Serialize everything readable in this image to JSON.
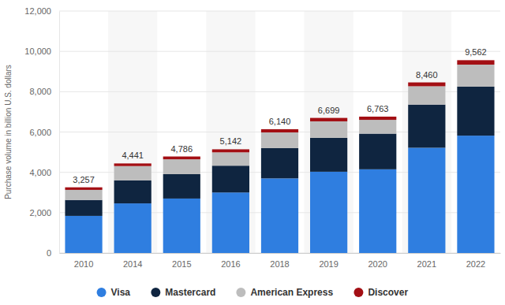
{
  "chart_data": {
    "type": "bar",
    "stacked": true,
    "grid": true,
    "legend": "bottom",
    "y_label": "Purchase volume in billion U.S. dollars",
    "categories": [
      "2010",
      "2014",
      "2015",
      "2016",
      "2018",
      "2019",
      "2020",
      "2021",
      "2022"
    ],
    "series": [
      {
        "name": "Visa",
        "color": "#2f7ee0",
        "values": [
          1840,
          2460,
          2700,
          3000,
          3700,
          4030,
          4150,
          5220,
          5820
        ]
      },
      {
        "name": "Mastercard",
        "color": "#0f2540",
        "values": [
          790,
          1140,
          1210,
          1330,
          1500,
          1680,
          1770,
          2140,
          2430
        ]
      },
      {
        "name": "American Express",
        "color": "#bdbdbd",
        "values": [
          500,
          710,
          736,
          662,
          780,
          819,
          683,
          910,
          1092
        ]
      },
      {
        "name": "Discover",
        "color": "#a30f14",
        "values": [
          127,
          131,
          140,
          150,
          160,
          170,
          160,
          190,
          220
        ]
      }
    ],
    "totals": [
      3257,
      4441,
      4786,
      5142,
      6140,
      6699,
      6763,
      8460,
      9562
    ],
    "total_labels": [
      "3,257",
      "4,441",
      "4,786",
      "5,142",
      "6,140",
      "6,699",
      "6,763",
      "8,460",
      "9,562"
    ],
    "ylim": [
      0,
      12000
    ],
    "yticks": [
      0,
      {
        "value": 2000,
        "label": "2,000"
      },
      {
        "value": 4000,
        "label": "4,000"
      },
      {
        "value": 6000,
        "label": "6,000"
      },
      {
        "value": 8000,
        "label": "8,000"
      },
      {
        "value": 10000,
        "label": "10,000"
      },
      {
        "value": 12000,
        "label": "12,000"
      }
    ]
  }
}
